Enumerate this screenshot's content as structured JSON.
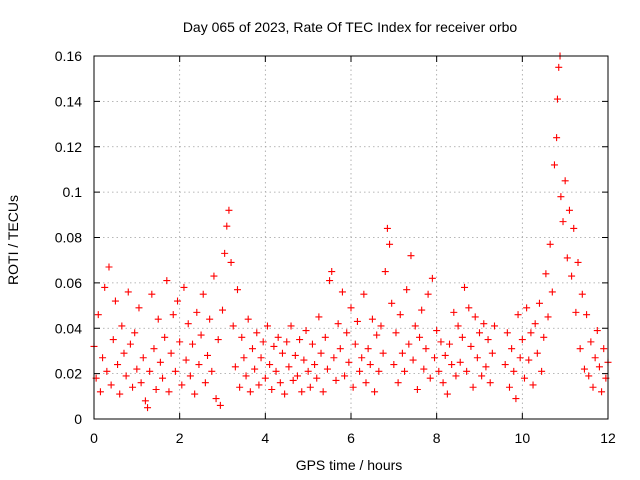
{
  "chart_data": {
    "type": "scatter",
    "title": "Day 065 of 2023, Rate Of TEC Index for receiver orbo",
    "xlabel": "GPS time / hours",
    "ylabel": "ROTI / TECUs",
    "xlim": [
      0,
      12
    ],
    "ylim": [
      0,
      0.16
    ],
    "xticks": [
      0,
      2,
      4,
      6,
      8,
      10,
      12
    ],
    "xtick_labels": [
      "0",
      "2",
      "4",
      "6",
      "8",
      "10",
      "12"
    ],
    "yticks": [
      0,
      0.02,
      0.04,
      0.06,
      0.08,
      0.1,
      0.12,
      0.14,
      0.16
    ],
    "ytick_labels": [
      "0",
      "0.02",
      "0.04",
      "0.06",
      "0.08",
      "0.1",
      "0.12",
      "0.14",
      "0.16"
    ],
    "grid": true,
    "marker": "+",
    "color": "#ff0000",
    "series": [
      {
        "name": "ROTI",
        "points": [
          [
            0.0,
            0.032
          ],
          [
            0.05,
            0.018
          ],
          [
            0.1,
            0.046
          ],
          [
            0.15,
            0.012
          ],
          [
            0.2,
            0.027
          ],
          [
            0.25,
            0.058
          ],
          [
            0.3,
            0.021
          ],
          [
            0.35,
            0.067
          ],
          [
            0.4,
            0.015
          ],
          [
            0.45,
            0.035
          ],
          [
            0.5,
            0.052
          ],
          [
            0.55,
            0.024
          ],
          [
            0.6,
            0.011
          ],
          [
            0.65,
            0.041
          ],
          [
            0.7,
            0.029
          ],
          [
            0.75,
            0.019
          ],
          [
            0.8,
            0.056
          ],
          [
            0.85,
            0.033
          ],
          [
            0.9,
            0.014
          ],
          [
            0.95,
            0.038
          ],
          [
            1.0,
            0.022
          ],
          [
            1.05,
            0.049
          ],
          [
            1.1,
            0.016
          ],
          [
            1.15,
            0.027
          ],
          [
            1.2,
            0.008
          ],
          [
            1.25,
            0.005
          ],
          [
            1.3,
            0.021
          ],
          [
            1.35,
            0.055
          ],
          [
            1.4,
            0.031
          ],
          [
            1.45,
            0.013
          ],
          [
            1.5,
            0.044
          ],
          [
            1.55,
            0.025
          ],
          [
            1.6,
            0.018
          ],
          [
            1.65,
            0.036
          ],
          [
            1.7,
            0.061
          ],
          [
            1.75,
            0.012
          ],
          [
            1.8,
            0.029
          ],
          [
            1.85,
            0.046
          ],
          [
            1.9,
            0.021
          ],
          [
            1.95,
            0.052
          ],
          [
            2.0,
            0.034
          ],
          [
            2.05,
            0.015
          ],
          [
            2.1,
            0.058
          ],
          [
            2.15,
            0.026
          ],
          [
            2.2,
            0.042
          ],
          [
            2.25,
            0.019
          ],
          [
            2.3,
            0.033
          ],
          [
            2.35,
            0.011
          ],
          [
            2.4,
            0.047
          ],
          [
            2.45,
            0.024
          ],
          [
            2.5,
            0.037
          ],
          [
            2.55,
            0.055
          ],
          [
            2.6,
            0.016
          ],
          [
            2.65,
            0.028
          ],
          [
            2.7,
            0.044
          ],
          [
            2.75,
            0.021
          ],
          [
            2.8,
            0.063
          ],
          [
            2.85,
            0.009
          ],
          [
            2.9,
            0.035
          ],
          [
            2.95,
            0.006
          ],
          [
            3.0,
            0.048
          ],
          [
            3.05,
            0.073
          ],
          [
            3.1,
            0.085
          ],
          [
            3.15,
            0.092
          ],
          [
            3.2,
            0.069
          ],
          [
            3.25,
            0.041
          ],
          [
            3.3,
            0.023
          ],
          [
            3.35,
            0.057
          ],
          [
            3.4,
            0.014
          ],
          [
            3.45,
            0.036
          ],
          [
            3.5,
            0.027
          ],
          [
            3.55,
            0.019
          ],
          [
            3.6,
            0.044
          ],
          [
            3.65,
            0.012
          ],
          [
            3.7,
            0.031
          ],
          [
            3.75,
            0.022
          ],
          [
            3.8,
            0.038
          ],
          [
            3.85,
            0.015
          ],
          [
            3.9,
            0.027
          ],
          [
            3.95,
            0.034
          ],
          [
            4.0,
            0.018
          ],
          [
            4.05,
            0.041
          ],
          [
            4.1,
            0.024
          ],
          [
            4.15,
            0.013
          ],
          [
            4.2,
            0.032
          ],
          [
            4.25,
            0.021
          ],
          [
            4.3,
            0.036
          ],
          [
            4.35,
            0.016
          ],
          [
            4.4,
            0.029
          ],
          [
            4.45,
            0.011
          ],
          [
            4.5,
            0.034
          ],
          [
            4.55,
            0.023
          ],
          [
            4.6,
            0.041
          ],
          [
            4.65,
            0.017
          ],
          [
            4.7,
            0.028
          ],
          [
            4.75,
            0.019
          ],
          [
            4.8,
            0.035
          ],
          [
            4.85,
            0.012
          ],
          [
            4.9,
            0.026
          ],
          [
            4.95,
            0.039
          ],
          [
            5.0,
            0.021
          ],
          [
            5.05,
            0.014
          ],
          [
            5.1,
            0.033
          ],
          [
            5.15,
            0.024
          ],
          [
            5.2,
            0.018
          ],
          [
            5.25,
            0.045
          ],
          [
            5.3,
            0.029
          ],
          [
            5.35,
            0.012
          ],
          [
            5.4,
            0.036
          ],
          [
            5.45,
            0.022
          ],
          [
            5.5,
            0.061
          ],
          [
            5.55,
            0.065
          ],
          [
            5.6,
            0.027
          ],
          [
            5.65,
            0.017
          ],
          [
            5.7,
            0.042
          ],
          [
            5.75,
            0.031
          ],
          [
            5.8,
            0.056
          ],
          [
            5.85,
            0.019
          ],
          [
            5.9,
            0.038
          ],
          [
            5.95,
            0.025
          ],
          [
            6.0,
            0.049
          ],
          [
            6.05,
            0.014
          ],
          [
            6.1,
            0.033
          ],
          [
            6.15,
            0.043
          ],
          [
            6.2,
            0.021
          ],
          [
            6.25,
            0.027
          ],
          [
            6.3,
            0.055
          ],
          [
            6.35,
            0.016
          ],
          [
            6.4,
            0.031
          ],
          [
            6.45,
            0.024
          ],
          [
            6.5,
            0.044
          ],
          [
            6.55,
            0.012
          ],
          [
            6.6,
            0.037
          ],
          [
            6.65,
            0.021
          ],
          [
            6.7,
            0.041
          ],
          [
            6.75,
            0.029
          ],
          [
            6.8,
            0.065
          ],
          [
            6.85,
            0.084
          ],
          [
            6.9,
            0.077
          ],
          [
            6.95,
            0.051
          ],
          [
            7.0,
            0.024
          ],
          [
            7.05,
            0.038
          ],
          [
            7.1,
            0.016
          ],
          [
            7.15,
            0.046
          ],
          [
            7.2,
            0.029
          ],
          [
            7.25,
            0.021
          ],
          [
            7.3,
            0.057
          ],
          [
            7.35,
            0.033
          ],
          [
            7.4,
            0.072
          ],
          [
            7.45,
            0.026
          ],
          [
            7.5,
            0.041
          ],
          [
            7.55,
            0.013
          ],
          [
            7.6,
            0.036
          ],
          [
            7.65,
            0.048
          ],
          [
            7.7,
            0.022
          ],
          [
            7.75,
            0.031
          ],
          [
            7.8,
            0.055
          ],
          [
            7.85,
            0.018
          ],
          [
            7.9,
            0.062
          ],
          [
            7.95,
            0.027
          ],
          [
            8.0,
            0.039
          ],
          [
            8.05,
            0.021
          ],
          [
            8.1,
            0.034
          ],
          [
            8.15,
            0.016
          ],
          [
            8.2,
            0.028
          ],
          [
            8.25,
            0.011
          ],
          [
            8.3,
            0.033
          ],
          [
            8.35,
            0.024
          ],
          [
            8.4,
            0.047
          ],
          [
            8.45,
            0.019
          ],
          [
            8.5,
            0.041
          ],
          [
            8.55,
            0.025
          ],
          [
            8.6,
            0.036
          ],
          [
            8.65,
            0.058
          ],
          [
            8.7,
            0.021
          ],
          [
            8.75,
            0.049
          ],
          [
            8.8,
            0.032
          ],
          [
            8.85,
            0.014
          ],
          [
            8.9,
            0.045
          ],
          [
            8.95,
            0.027
          ],
          [
            9.0,
            0.038
          ],
          [
            9.05,
            0.019
          ],
          [
            9.1,
            0.042
          ],
          [
            9.15,
            0.023
          ],
          [
            9.2,
            0.035
          ],
          [
            9.25,
            0.016
          ],
          [
            9.3,
            0.029
          ],
          [
            9.35,
            0.041
          ],
          [
            9.6,
            0.024
          ],
          [
            9.65,
            0.038
          ],
          [
            9.7,
            0.014
          ],
          [
            9.75,
            0.031
          ],
          [
            9.8,
            0.021
          ],
          [
            9.85,
            0.009
          ],
          [
            9.9,
            0.046
          ],
          [
            9.95,
            0.027
          ],
          [
            10.0,
            0.035
          ],
          [
            10.05,
            0.018
          ],
          [
            10.1,
            0.049
          ],
          [
            10.15,
            0.026
          ],
          [
            10.2,
            0.038
          ],
          [
            10.25,
            0.015
          ],
          [
            10.3,
            0.042
          ],
          [
            10.35,
            0.029
          ],
          [
            10.4,
            0.051
          ],
          [
            10.45,
            0.021
          ],
          [
            10.5,
            0.036
          ],
          [
            10.55,
            0.064
          ],
          [
            10.6,
            0.045
          ],
          [
            10.65,
            0.077
          ],
          [
            10.7,
            0.056
          ],
          [
            10.75,
            0.112
          ],
          [
            10.8,
            0.124
          ],
          [
            10.82,
            0.141
          ],
          [
            10.85,
            0.155
          ],
          [
            10.88,
            0.16
          ],
          [
            10.9,
            0.098
          ],
          [
            10.95,
            0.087
          ],
          [
            11.0,
            0.105
          ],
          [
            11.05,
            0.071
          ],
          [
            11.1,
            0.092
          ],
          [
            11.15,
            0.063
          ],
          [
            11.2,
            0.084
          ],
          [
            11.25,
            0.047
          ],
          [
            11.3,
            0.069
          ],
          [
            11.35,
            0.031
          ],
          [
            11.4,
            0.055
          ],
          [
            11.45,
            0.022
          ],
          [
            11.5,
            0.046
          ],
          [
            11.55,
            0.019
          ],
          [
            11.6,
            0.034
          ],
          [
            11.65,
            0.014
          ],
          [
            11.7,
            0.027
          ],
          [
            11.75,
            0.039
          ],
          [
            11.8,
            0.023
          ],
          [
            11.85,
            0.012
          ],
          [
            11.9,
            0.031
          ],
          [
            11.95,
            0.018
          ],
          [
            12.0,
            0.025
          ]
        ]
      }
    ]
  }
}
